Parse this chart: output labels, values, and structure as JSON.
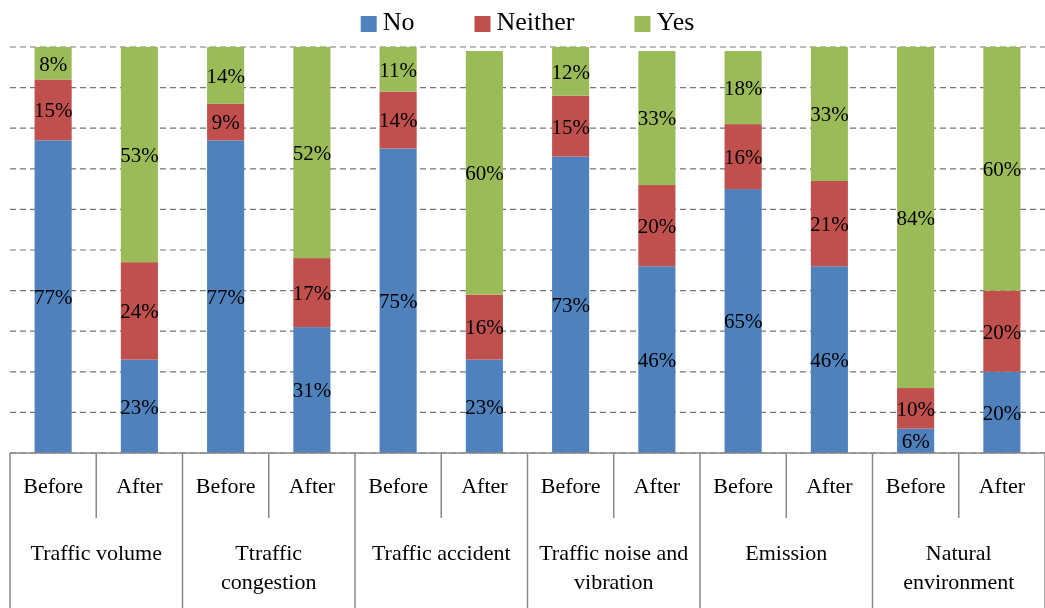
{
  "chart_data": {
    "type": "bar",
    "stacked": true,
    "legend": "top",
    "grid": "y",
    "tick_labels": "x",
    "categories": [
      "Before",
      "After",
      "Before",
      "After",
      "Before",
      "After",
      "Before",
      "After",
      "Before",
      "After",
      "Before",
      "After"
    ],
    "annotations": [
      "Traffic volume",
      "Ttraffic congestion",
      "Traffic accident",
      "Traffic noise and vibration",
      "Emission",
      "Natural environment"
    ],
    "series": [
      {
        "name": "No",
        "color": "#4f81bd",
        "values": [
          77,
          23,
          77,
          31,
          75,
          23,
          73,
          46,
          65,
          46,
          6,
          20
        ],
        "value_labels": [
          "77%",
          "23%",
          "77%",
          "31%",
          "75%",
          "23%",
          "73%",
          "46%",
          "65%",
          "46%",
          "6%",
          "20%"
        ]
      },
      {
        "name": "Neither",
        "color": "#c0504d",
        "values": [
          15,
          24,
          9,
          17,
          14,
          16,
          15,
          20,
          16,
          21,
          10,
          20
        ],
        "value_labels": [
          "15%",
          "24%",
          "9%",
          "17%",
          "14%",
          "16%",
          "15%",
          "20%",
          "16%",
          "21%",
          "10%",
          "20%"
        ]
      },
      {
        "name": "Yes",
        "color": "#9bbb59",
        "values": [
          8,
          53,
          14,
          52,
          11,
          60,
          12,
          33,
          18,
          33,
          84,
          60
        ],
        "value_labels": [
          "8%",
          "53%",
          "14%",
          "52%",
          "11%",
          "60%",
          "12%",
          "33%",
          "18%",
          "33%",
          "84%",
          "60%"
        ]
      }
    ]
  }
}
